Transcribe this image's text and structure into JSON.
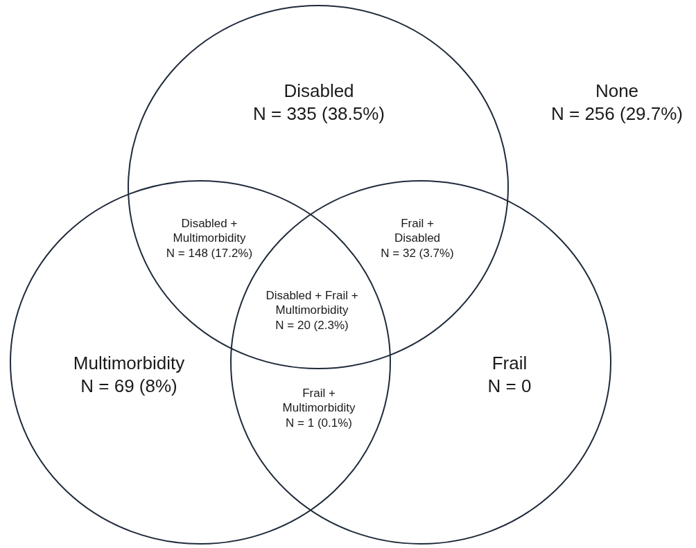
{
  "chart_data": {
    "type": "other",
    "categories": [
      "Disabled",
      "None",
      "Disabled + Multimorbidity",
      "Frail + Disabled",
      "Disabled + Frail + Multimorbidity",
      "Multimorbidity",
      "Frail",
      "Frail + Multimorbidity"
    ],
    "values": [
      335,
      256,
      148,
      32,
      20,
      69,
      0,
      1
    ],
    "value_labels": [
      "N = 335 (38.5%)",
      "N = 256 (29.7%)",
      "N = 148 (17.2%)",
      "N = 32 (3.7%)",
      "N = 20 (2.3%)",
      "N = 69 (8%)",
      "N = 0",
      "N = 1 (0.1%)"
    ]
  }
}
